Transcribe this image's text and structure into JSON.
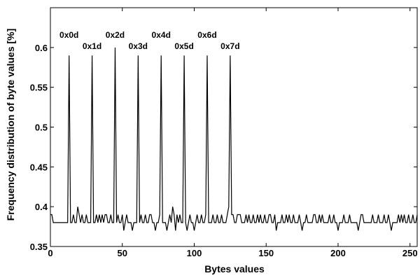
{
  "chart_data": {
    "type": "line",
    "title": "",
    "xlabel": "Bytes values",
    "ylabel": "Frequency distribution of byte values [%]",
    "xlim": [
      0,
      255
    ],
    "ylim": [
      0.35,
      0.65
    ],
    "grid": false,
    "legend": "none",
    "line_color": "#000000",
    "x_ticks": [
      0,
      50,
      100,
      150,
      200,
      250
    ],
    "x_tick_labels": [
      "0",
      "50",
      "100",
      "150",
      "200",
      "250"
    ],
    "y_ticks": [
      0.35,
      0.4,
      0.45,
      0.5,
      0.55,
      0.6
    ],
    "y_tick_labels": [
      "0.35",
      "0.4",
      "0.45",
      "0.5",
      "0.55",
      "0.6"
    ],
    "peak_annotations": [
      {
        "text": "0x0d",
        "x": 13,
        "y": 0.59
      },
      {
        "text": "0x1d",
        "x": 29,
        "y": 0.59
      },
      {
        "text": "0x2d",
        "x": 45,
        "y": 0.6
      },
      {
        "text": "0x3d",
        "x": 61,
        "y": 0.59
      },
      {
        "text": "0x4d",
        "x": 77,
        "y": 0.59
      },
      {
        "text": "0x5d",
        "x": 93,
        "y": 0.59
      },
      {
        "text": "0x6d",
        "x": 109,
        "y": 0.59
      },
      {
        "text": "0x7d",
        "x": 125,
        "y": 0.59
      }
    ],
    "series": [
      {
        "x_start": 0,
        "x_step": 1,
        "values": [
          0.39,
          0.39,
          0.38,
          0.38,
          0.38,
          0.38,
          0.38,
          0.38,
          0.38,
          0.38,
          0.38,
          0.38,
          0.38,
          0.59,
          0.38,
          0.38,
          0.39,
          0.38,
          0.38,
          0.4,
          0.39,
          0.38,
          0.39,
          0.38,
          0.38,
          0.39,
          0.38,
          0.38,
          0.38,
          0.59,
          0.38,
          0.38,
          0.39,
          0.38,
          0.39,
          0.38,
          0.39,
          0.38,
          0.39,
          0.39,
          0.38,
          0.38,
          0.39,
          0.38,
          0.38,
          0.6,
          0.38,
          0.39,
          0.38,
          0.38,
          0.39,
          0.37,
          0.38,
          0.39,
          0.38,
          0.38,
          0.38,
          0.37,
          0.38,
          0.38,
          0.38,
          0.59,
          0.38,
          0.39,
          0.38,
          0.38,
          0.39,
          0.38,
          0.38,
          0.39,
          0.39,
          0.38,
          0.38,
          0.37,
          0.38,
          0.38,
          0.39,
          0.59,
          0.38,
          0.38,
          0.38,
          0.37,
          0.38,
          0.39,
          0.38,
          0.4,
          0.39,
          0.37,
          0.39,
          0.38,
          0.39,
          0.38,
          0.38,
          0.59,
          0.38,
          0.37,
          0.38,
          0.39,
          0.38,
          0.38,
          0.37,
          0.38,
          0.39,
          0.38,
          0.38,
          0.39,
          0.38,
          0.38,
          0.39,
          0.59,
          0.38,
          0.38,
          0.38,
          0.39,
          0.38,
          0.38,
          0.39,
          0.38,
          0.38,
          0.39,
          0.38,
          0.38,
          0.38,
          0.39,
          0.4,
          0.59,
          0.39,
          0.39,
          0.38,
          0.38,
          0.39,
          0.39,
          0.39,
          0.38,
          0.38,
          0.38,
          0.39,
          0.38,
          0.39,
          0.38,
          0.38,
          0.39,
          0.38,
          0.38,
          0.39,
          0.38,
          0.39,
          0.38,
          0.38,
          0.39,
          0.38,
          0.38,
          0.39,
          0.39,
          0.38,
          0.38,
          0.39,
          0.37,
          0.38,
          0.38,
          0.38,
          0.39,
          0.38,
          0.38,
          0.39,
          0.38,
          0.39,
          0.38,
          0.38,
          0.39,
          0.38,
          0.38,
          0.38,
          0.39,
          0.38,
          0.37,
          0.38,
          0.38,
          0.39,
          0.38,
          0.38,
          0.38,
          0.38,
          0.39,
          0.39,
          0.38,
          0.38,
          0.39,
          0.38,
          0.39,
          0.38,
          0.38,
          0.38,
          0.38,
          0.39,
          0.38,
          0.38,
          0.39,
          0.38,
          0.38,
          0.37,
          0.38,
          0.38,
          0.38,
          0.39,
          0.38,
          0.38,
          0.38,
          0.39,
          0.38,
          0.38,
          0.38,
          0.38,
          0.38,
          0.37,
          0.38,
          0.39,
          0.39,
          0.38,
          0.38,
          0.38,
          0.38,
          0.38,
          0.38,
          0.39,
          0.38,
          0.38,
          0.38,
          0.39,
          0.38,
          0.38,
          0.38,
          0.39,
          0.38,
          0.38,
          0.39,
          0.38,
          0.37,
          0.38,
          0.38,
          0.38,
          0.38,
          0.39,
          0.38,
          0.39,
          0.38,
          0.39,
          0.38,
          0.38,
          0.39,
          0.38,
          0.38,
          0.39,
          0.38,
          0.38,
          0.39
        ]
      }
    ]
  }
}
